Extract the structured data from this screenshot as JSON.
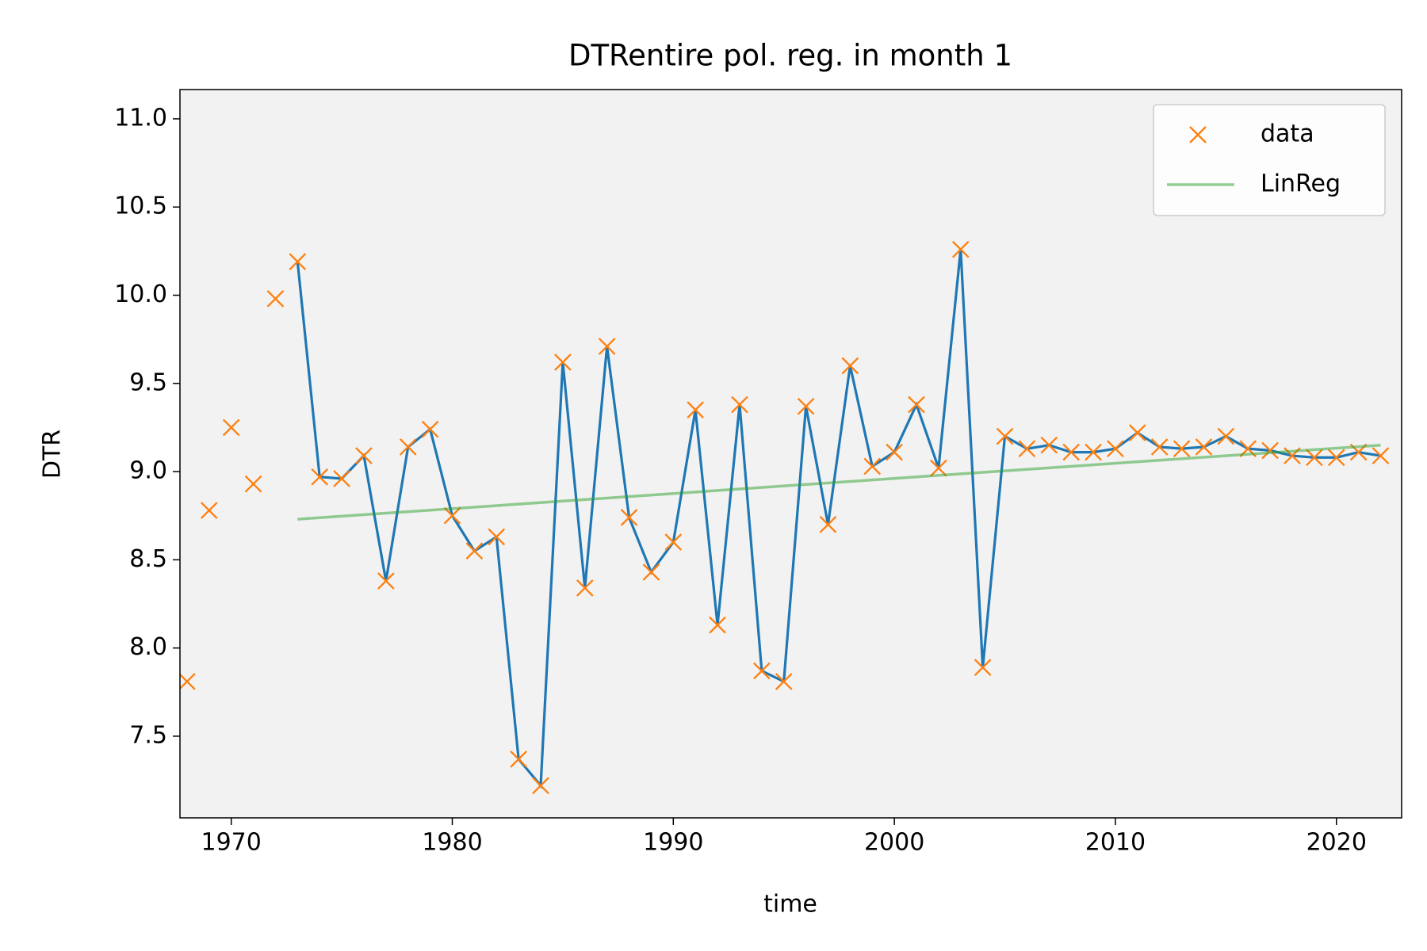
{
  "chart_data": {
    "type": "line",
    "title": "DTRentire pol. reg. in month 1",
    "xlabel": "time",
    "ylabel": "DTR",
    "x": [
      1968,
      1969,
      1970,
      1971,
      1972,
      1973,
      1974,
      1975,
      1976,
      1977,
      1978,
      1979,
      1980,
      1981,
      1982,
      1983,
      1984,
      1985,
      1986,
      1987,
      1988,
      1989,
      1990,
      1991,
      1992,
      1993,
      1994,
      1995,
      1996,
      1997,
      1998,
      1999,
      2000,
      2001,
      2002,
      2003,
      2004,
      2005,
      2006,
      2007,
      2008,
      2009,
      2010,
      2011,
      2012,
      2013,
      2014,
      2015,
      2016,
      2017,
      2018,
      2019,
      2020,
      2021,
      2022
    ],
    "series": [
      {
        "color": "#1f77b4",
        "style": "line",
        "values": [
          null,
          null,
          null,
          null,
          null,
          10.19,
          8.97,
          8.96,
          9.09,
          8.38,
          9.14,
          9.24,
          8.75,
          8.55,
          8.63,
          7.37,
          7.22,
          9.62,
          8.34,
          9.71,
          8.74,
          8.43,
          8.6,
          9.35,
          8.13,
          9.38,
          7.87,
          7.81,
          9.37,
          8.7,
          9.6,
          9.03,
          9.11,
          9.38,
          9.02,
          10.26,
          7.89,
          9.2,
          9.13,
          9.15,
          9.11,
          9.11,
          9.13,
          9.22,
          9.14,
          9.13,
          9.14,
          9.2,
          9.13,
          9.12,
          9.09,
          9.08,
          9.08,
          9.11,
          9.09
        ]
      },
      {
        "name": "data",
        "color": "#ff7f0e",
        "style": "marker",
        "values": [
          7.81,
          8.78,
          9.25,
          8.93,
          9.98,
          10.19,
          8.97,
          8.96,
          9.09,
          8.38,
          9.14,
          9.24,
          8.75,
          8.55,
          8.63,
          7.37,
          7.22,
          9.62,
          8.34,
          9.71,
          8.74,
          8.43,
          8.6,
          9.35,
          8.13,
          9.38,
          7.87,
          7.81,
          9.37,
          8.7,
          9.6,
          9.03,
          9.11,
          9.38,
          9.02,
          10.26,
          7.89,
          9.2,
          9.13,
          9.15,
          9.11,
          9.11,
          9.13,
          9.22,
          9.14,
          9.13,
          9.14,
          9.2,
          9.13,
          9.12,
          9.09,
          9.08,
          9.08,
          9.11,
          9.09
        ]
      },
      {
        "name": "LinReg",
        "color": "#2ca02c",
        "style": "line",
        "x": [
          1973,
          2022
        ],
        "values": [
          8.73,
          9.15
        ]
      }
    ],
    "xlim": [
      1967.68,
      2022.95
    ],
    "ylim": [
      7.037,
      11.166
    ],
    "xticks": [
      1970,
      1980,
      1990,
      2000,
      2010,
      2020
    ],
    "yticks": [
      7.5,
      {
        "value": 8.0,
        "label": "8.0"
      },
      8.5,
      {
        "value": 9.0,
        "label": "9.0"
      },
      9.5,
      {
        "value": 10.0,
        "label": "10.0"
      },
      10.5,
      {
        "value": 11.0,
        "label": "11.0"
      }
    ],
    "legend": "upper right",
    "background": "#f2f2f2"
  }
}
